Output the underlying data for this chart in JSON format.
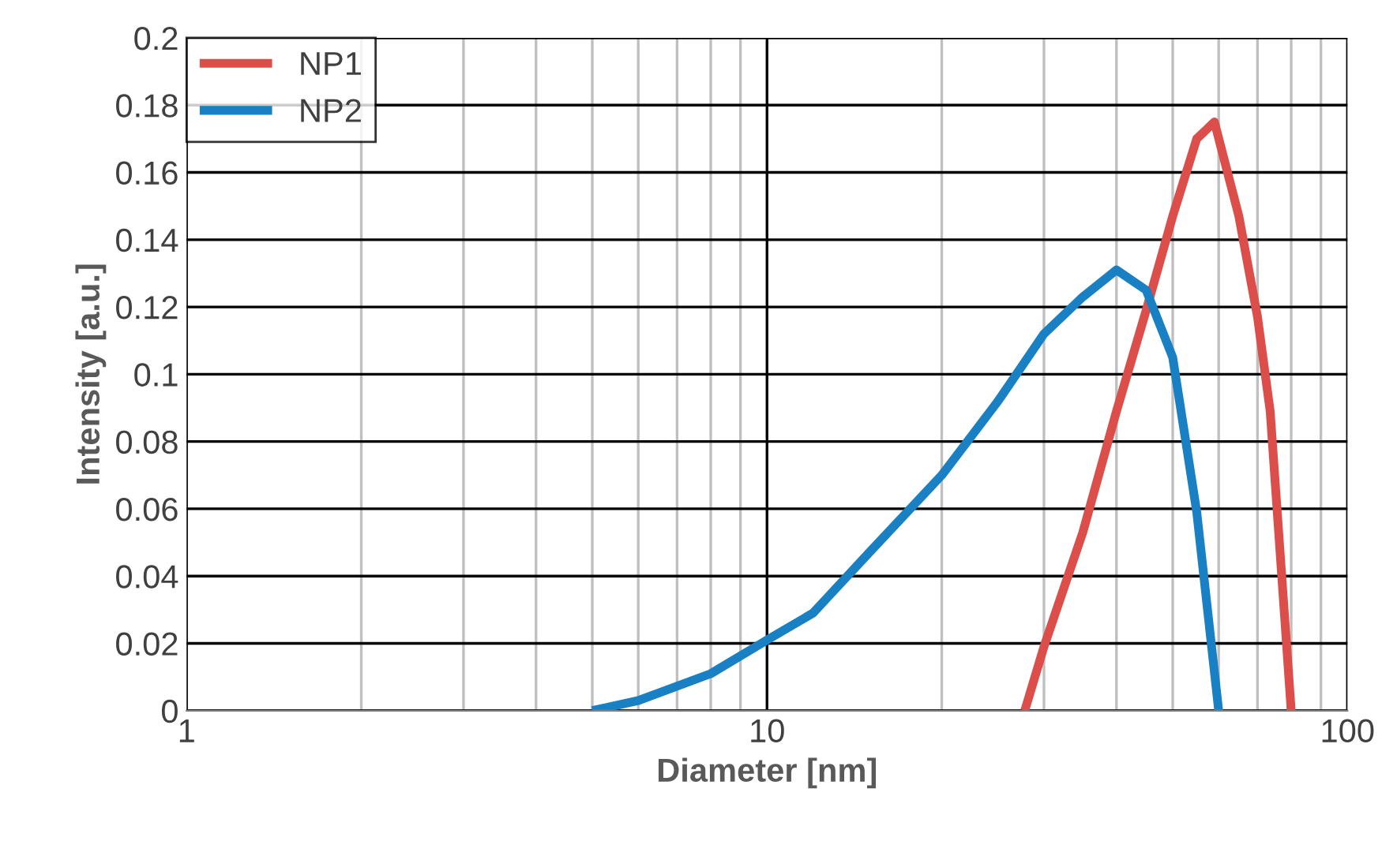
{
  "chart_data": {
    "type": "line",
    "xlabel": "Diameter [nm]",
    "ylabel": "Intensity [a.u.]",
    "log": "x",
    "xlim": [
      1,
      100
    ],
    "xticks": [
      1,
      10,
      100
    ],
    "ylim": [
      0,
      0.2
    ],
    "yticks": [
      0,
      0.02,
      0.04,
      0.06,
      0.08,
      0.1,
      0.12,
      0.14,
      0.16,
      0.18,
      0.2
    ],
    "grid": true,
    "legend": "top left",
    "marker": "none",
    "line_style": "solid",
    "series": [
      {
        "name": "NP1",
        "color": "#dc4e4a",
        "x": [
          27.8,
          30,
          35,
          40,
          45,
          50,
          55,
          59,
          65,
          70,
          73.6,
          80
        ],
        "values": [
          0,
          0.019,
          0.053,
          0.089,
          0.119,
          0.147,
          0.17,
          0.175,
          0.147,
          0.117,
          0.089,
          0
        ]
      },
      {
        "name": "NP2",
        "color": "#1a80c4",
        "x": [
          5,
          6,
          8,
          10,
          12,
          15,
          20,
          25,
          30,
          35,
          40,
          45,
          50,
          55,
          60
        ],
        "values": [
          0,
          0.003,
          0.011,
          0.021,
          0.029,
          0.047,
          0.07,
          0.092,
          0.112,
          0.123,
          0.131,
          0.125,
          0.105,
          0.059,
          0
        ]
      }
    ]
  }
}
